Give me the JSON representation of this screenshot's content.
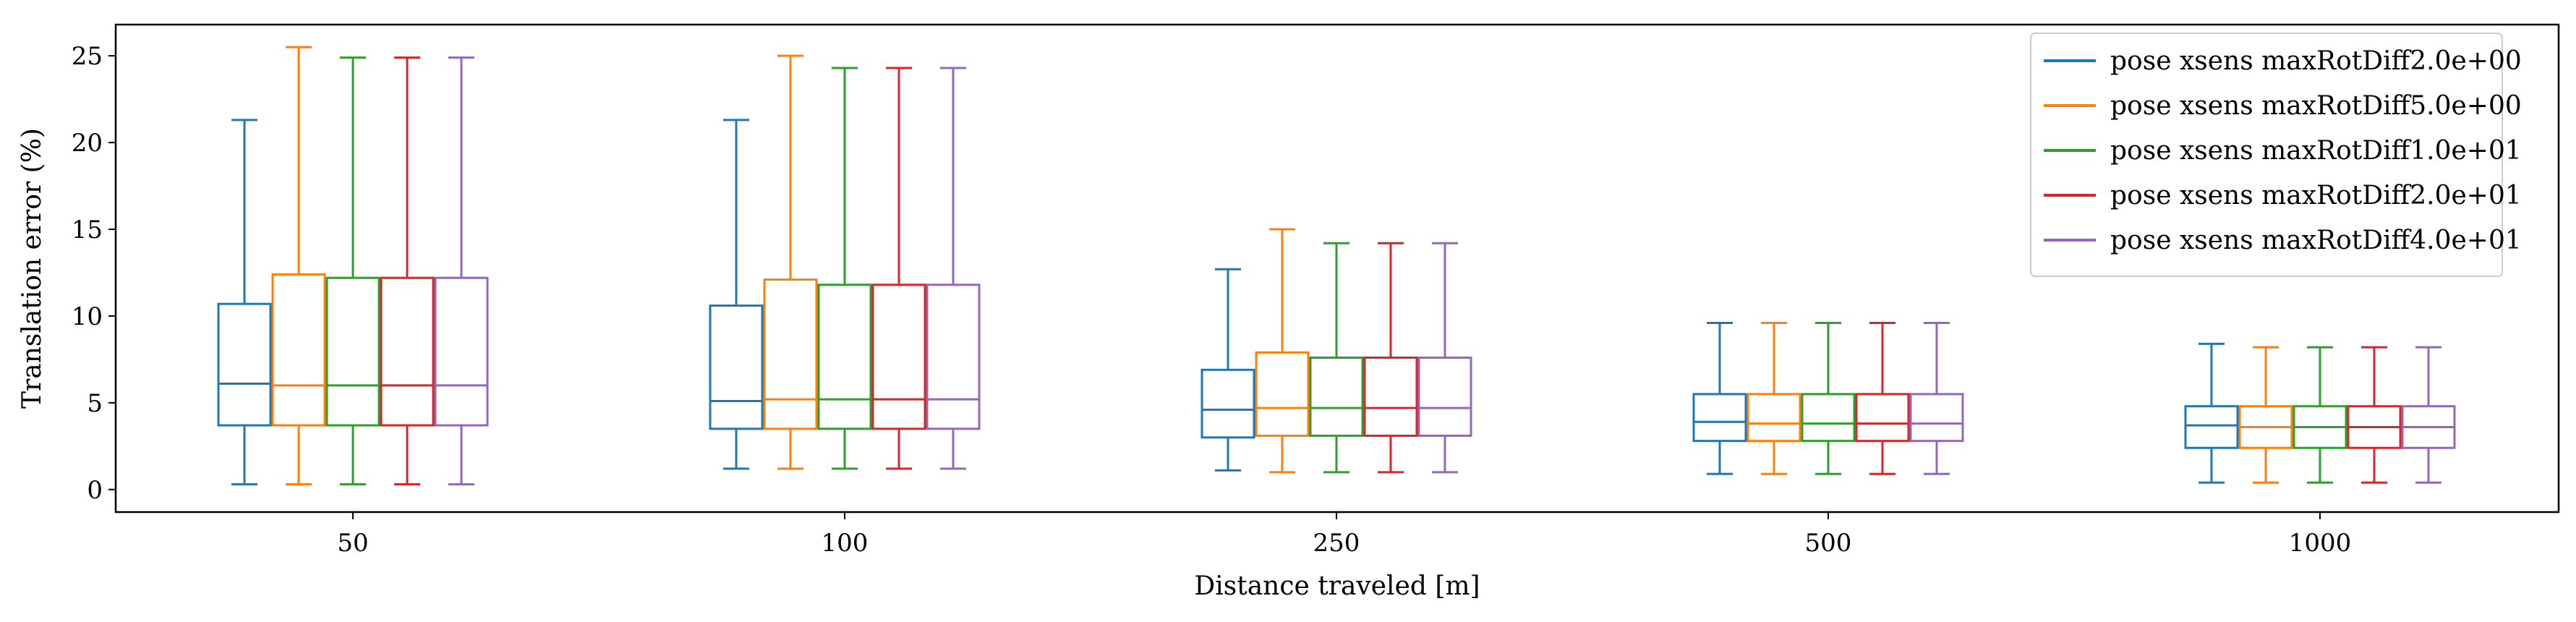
{
  "chart_data": {
    "type": "box",
    "xlabel": "Distance traveled [m]",
    "ylabel": "Translation error (%)",
    "categories": [
      "50",
      "100",
      "250",
      "500",
      "1000"
    ],
    "ylim": [
      -1.3,
      26.8
    ],
    "yticks": [
      0,
      5,
      10,
      15,
      20,
      25
    ],
    "grid": false,
    "legend_position": "top-right",
    "series": [
      {
        "name": "pose xsens maxRotDiff2.0e+00",
        "color": "#1f77b4",
        "boxes": [
          {
            "min": 0.3,
            "q1": 3.7,
            "median": 6.1,
            "q3": 10.7,
            "max": 21.3
          },
          {
            "min": 1.2,
            "q1": 3.5,
            "median": 5.1,
            "q3": 10.6,
            "max": 21.3
          },
          {
            "min": 1.1,
            "q1": 3.0,
            "median": 4.6,
            "q3": 6.9,
            "max": 12.7
          },
          {
            "min": 0.9,
            "q1": 2.8,
            "median": 3.9,
            "q3": 5.5,
            "max": 9.6
          },
          {
            "min": 0.4,
            "q1": 2.4,
            "median": 3.7,
            "q3": 4.8,
            "max": 8.4
          }
        ]
      },
      {
        "name": "pose xsens maxRotDiff5.0e+00",
        "color": "#ff7f0e",
        "boxes": [
          {
            "min": 0.3,
            "q1": 3.7,
            "median": 6.0,
            "q3": 12.4,
            "max": 25.5
          },
          {
            "min": 1.2,
            "q1": 3.5,
            "median": 5.2,
            "q3": 12.1,
            "max": 25.0
          },
          {
            "min": 1.0,
            "q1": 3.1,
            "median": 4.7,
            "q3": 7.9,
            "max": 15.0
          },
          {
            "min": 0.9,
            "q1": 2.8,
            "median": 3.8,
            "q3": 5.5,
            "max": 9.6
          },
          {
            "min": 0.4,
            "q1": 2.4,
            "median": 3.6,
            "q3": 4.8,
            "max": 8.2
          }
        ]
      },
      {
        "name": "pose xsens maxRotDiff1.0e+01",
        "color": "#2ca02c",
        "boxes": [
          {
            "min": 0.3,
            "q1": 3.7,
            "median": 6.0,
            "q3": 12.2,
            "max": 24.9
          },
          {
            "min": 1.2,
            "q1": 3.5,
            "median": 5.2,
            "q3": 11.8,
            "max": 24.3
          },
          {
            "min": 1.0,
            "q1": 3.1,
            "median": 4.7,
            "q3": 7.6,
            "max": 14.2
          },
          {
            "min": 0.9,
            "q1": 2.8,
            "median": 3.8,
            "q3": 5.5,
            "max": 9.6
          },
          {
            "min": 0.4,
            "q1": 2.4,
            "median": 3.6,
            "q3": 4.8,
            "max": 8.2
          }
        ]
      },
      {
        "name": "pose xsens maxRotDiff2.0e+01",
        "color": "#d62728",
        "boxes": [
          {
            "min": 0.3,
            "q1": 3.7,
            "median": 6.0,
            "q3": 12.2,
            "max": 24.9
          },
          {
            "min": 1.2,
            "q1": 3.5,
            "median": 5.2,
            "q3": 11.8,
            "max": 24.3
          },
          {
            "min": 1.0,
            "q1": 3.1,
            "median": 4.7,
            "q3": 7.6,
            "max": 14.2
          },
          {
            "min": 0.9,
            "q1": 2.8,
            "median": 3.8,
            "q3": 5.5,
            "max": 9.6
          },
          {
            "min": 0.4,
            "q1": 2.4,
            "median": 3.6,
            "q3": 4.8,
            "max": 8.2
          }
        ]
      },
      {
        "name": "pose xsens maxRotDiff4.0e+01",
        "color": "#9467bd",
        "boxes": [
          {
            "min": 0.3,
            "q1": 3.7,
            "median": 6.0,
            "q3": 12.2,
            "max": 24.9
          },
          {
            "min": 1.2,
            "q1": 3.5,
            "median": 5.2,
            "q3": 11.8,
            "max": 24.3
          },
          {
            "min": 1.0,
            "q1": 3.1,
            "median": 4.7,
            "q3": 7.6,
            "max": 14.2
          },
          {
            "min": 0.9,
            "q1": 2.8,
            "median": 3.8,
            "q3": 5.5,
            "max": 9.6
          },
          {
            "min": 0.4,
            "q1": 2.4,
            "median": 3.6,
            "q3": 4.8,
            "max": 8.2
          }
        ]
      }
    ]
  }
}
